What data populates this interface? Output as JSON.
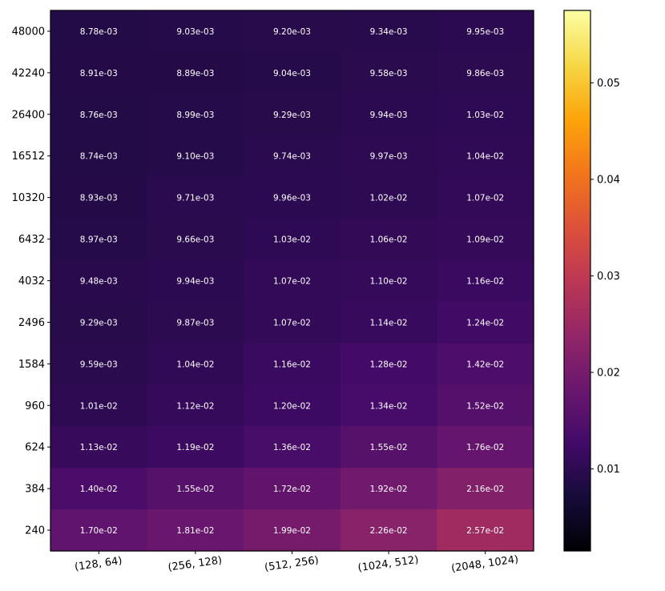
{
  "chart_data": {
    "type": "heatmap",
    "title": "",
    "xlabel": "",
    "ylabel": "",
    "x_categories": [
      "(128, 64)",
      "(256, 128)",
      "(512, 256)",
      "(1024, 512)",
      "(2048, 1024)"
    ],
    "y_categories": [
      "48000",
      "42240",
      "26400",
      "16512",
      "10320",
      "6432",
      "4032",
      "2496",
      "1584",
      "960",
      "624",
      "384",
      "240"
    ],
    "values": [
      [
        0.00878,
        0.00903,
        0.0092,
        0.00934,
        0.00995
      ],
      [
        0.00891,
        0.00889,
        0.00904,
        0.00958,
        0.00986
      ],
      [
        0.00876,
        0.00899,
        0.00929,
        0.00994,
        0.0103
      ],
      [
        0.00874,
        0.0091,
        0.00974,
        0.00997,
        0.0104
      ],
      [
        0.00893,
        0.00971,
        0.00996,
        0.0102,
        0.0107
      ],
      [
        0.00897,
        0.00966,
        0.0103,
        0.0106,
        0.0109
      ],
      [
        0.00948,
        0.00994,
        0.0107,
        0.011,
        0.0116
      ],
      [
        0.00929,
        0.00987,
        0.0107,
        0.0114,
        0.0124
      ],
      [
        0.00959,
        0.0104,
        0.0116,
        0.0128,
        0.0142
      ],
      [
        0.0101,
        0.0112,
        0.012,
        0.0134,
        0.0152
      ],
      [
        0.0113,
        0.0119,
        0.0136,
        0.0155,
        0.0176
      ],
      [
        0.014,
        0.0155,
        0.0172,
        0.0192,
        0.0216
      ],
      [
        0.017,
        0.0181,
        0.0199,
        0.0226,
        0.0257
      ]
    ],
    "cell_labels": [
      [
        "8.78e-03",
        "9.03e-03",
        "9.20e-03",
        "9.34e-03",
        "9.95e-03"
      ],
      [
        "8.91e-03",
        "8.89e-03",
        "9.04e-03",
        "9.58e-03",
        "9.86e-03"
      ],
      [
        "8.76e-03",
        "8.99e-03",
        "9.29e-03",
        "9.94e-03",
        "1.03e-02"
      ],
      [
        "8.74e-03",
        "9.10e-03",
        "9.74e-03",
        "9.97e-03",
        "1.04e-02"
      ],
      [
        "8.93e-03",
        "9.71e-03",
        "9.96e-03",
        "1.02e-02",
        "1.07e-02"
      ],
      [
        "8.97e-03",
        "9.66e-03",
        "1.03e-02",
        "1.06e-02",
        "1.09e-02"
      ],
      [
        "9.48e-03",
        "9.94e-03",
        "1.07e-02",
        "1.10e-02",
        "1.16e-02"
      ],
      [
        "9.29e-03",
        "9.87e-03",
        "1.07e-02",
        "1.14e-02",
        "1.24e-02"
      ],
      [
        "9.59e-03",
        "1.04e-02",
        "1.16e-02",
        "1.28e-02",
        "1.42e-02"
      ],
      [
        "1.01e-02",
        "1.12e-02",
        "1.20e-02",
        "1.34e-02",
        "1.52e-02"
      ],
      [
        "1.13e-02",
        "1.19e-02",
        "1.36e-02",
        "1.55e-02",
        "1.76e-02"
      ],
      [
        "1.40e-02",
        "1.55e-02",
        "1.72e-02",
        "1.92e-02",
        "2.16e-02"
      ],
      [
        "1.70e-02",
        "1.81e-02",
        "1.99e-02",
        "2.26e-02",
        "2.57e-02"
      ]
    ],
    "colormap": "inferno",
    "colorbar": {
      "range": [
        0.0015,
        0.0575
      ],
      "ticks": [
        0.01,
        0.02,
        0.03,
        0.04,
        0.05
      ],
      "tick_labels": [
        "0.01",
        "0.02",
        "0.03",
        "0.04",
        "0.05"
      ]
    },
    "grid": false,
    "legend": "none"
  }
}
